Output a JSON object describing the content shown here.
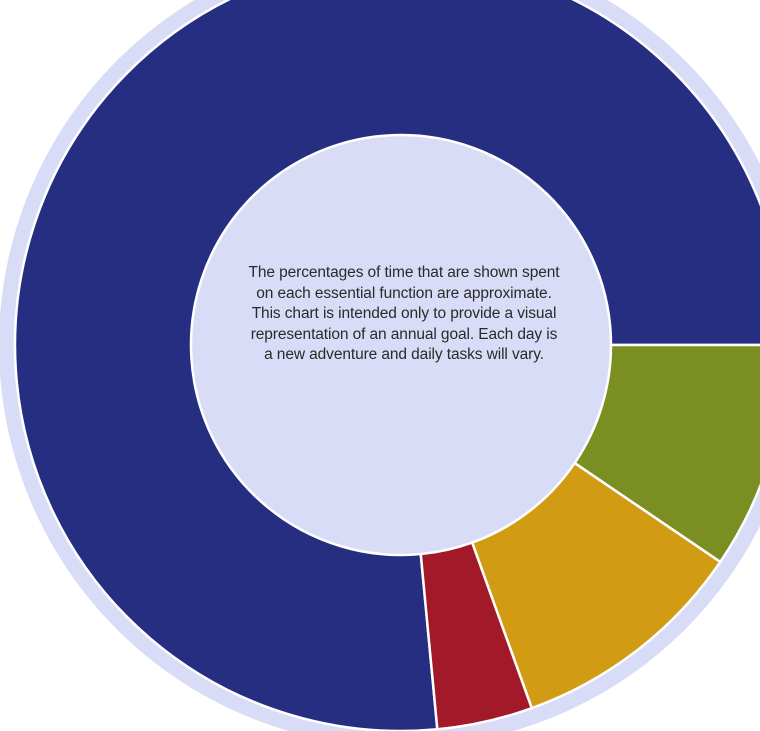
{
  "chart_data": {
    "type": "pie",
    "donut": true,
    "series": [
      {
        "values": [
          76.5,
          9.5,
          10.0,
          4.0
        ],
        "colors": [
          "#262e82",
          "#7a8e22",
          "#d19b14",
          "#a2192a"
        ]
      }
    ],
    "title": "",
    "legend": "none",
    "center_note": "The percentages of time that are shown spent on each essential function are approximate. This chart is intended only to provide a visual representation of an annual goal. Each day is a new adventure and daily tasks will vary."
  },
  "colors": {
    "accent_light": "#d9dcf6",
    "separator": "#ffffff"
  }
}
